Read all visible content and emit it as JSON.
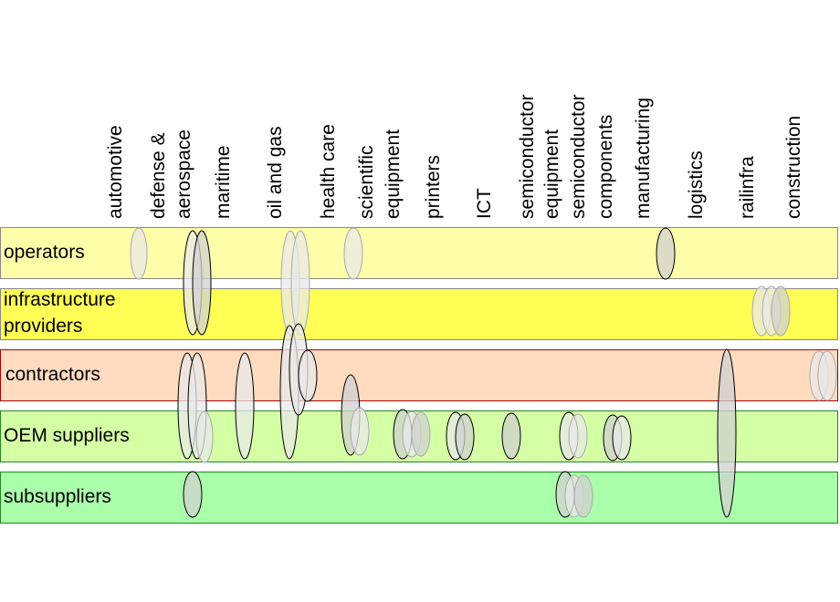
{
  "columns": [
    {
      "id": "automotive",
      "lines": [
        "automotive"
      ]
    },
    {
      "id": "defense-aerospace",
      "lines": [
        "defense &",
        "aerospace"
      ]
    },
    {
      "id": "maritime",
      "lines": [
        "maritime"
      ]
    },
    {
      "id": "oil-gas",
      "lines": [
        "oil and gas"
      ]
    },
    {
      "id": "health-care",
      "lines": [
        "health care"
      ]
    },
    {
      "id": "scientific-equipment",
      "lines": [
        "scientific",
        "equipment"
      ]
    },
    {
      "id": "printers",
      "lines": [
        "printers"
      ]
    },
    {
      "id": "ict",
      "lines": [
        "ICT"
      ]
    },
    {
      "id": "semiconductor-equipment",
      "lines": [
        "semiconductor",
        "equipment"
      ]
    },
    {
      "id": "semiconductor-components",
      "lines": [
        "semiconductor",
        "components"
      ]
    },
    {
      "id": "manufacturing",
      "lines": [
        "manufacturing"
      ]
    },
    {
      "id": "logistics",
      "lines": [
        "logistics"
      ]
    },
    {
      "id": "railinfra",
      "lines": [
        "railinfra"
      ]
    },
    {
      "id": "construction",
      "lines": [
        "construction"
      ]
    }
  ],
  "rows": [
    {
      "id": "operators",
      "label": "operators",
      "color": "#ffffaa",
      "border": "#888888"
    },
    {
      "id": "infrastructure-providers",
      "label": "infrastructure\nproviders",
      "color": "#ffff55",
      "border": "#888888"
    },
    {
      "id": "contractors",
      "label": "contractors",
      "color": "#ffdcc0",
      "border": "#aa0000"
    },
    {
      "id": "oem-suppliers",
      "label": "OEM suppliers",
      "color": "#d4ffa4",
      "border": "#228822"
    },
    {
      "id": "subsuppliers",
      "label": "subsuppliers",
      "color": "#aaffaa",
      "border": "#228822"
    }
  ],
  "colors": {
    "oval_gray": "#d0d0d0",
    "oval_light": "#e8e8e8",
    "oval_stroke": "#000000",
    "oval_stroke_light": "#aaaaaa"
  }
}
